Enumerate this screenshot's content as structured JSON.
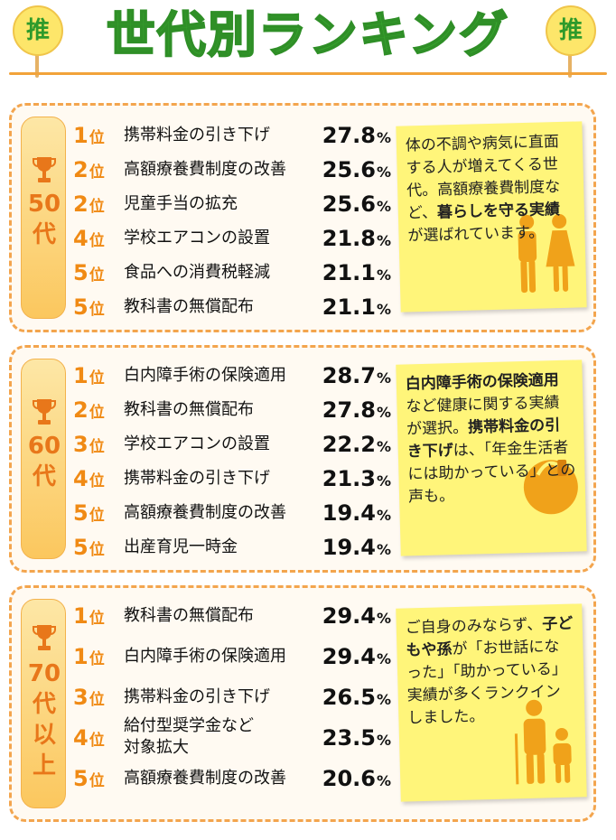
{
  "header": {
    "title": "世代別ランキング",
    "fan_left": "推",
    "fan_right": "推"
  },
  "colors": {
    "title_green": "#37a52e",
    "rank_orange": "#f08a14",
    "border_orange": "#f3a54e",
    "note_yellow": "#fff57a"
  },
  "sections": [
    {
      "age_lines": [
        "50",
        "代"
      ],
      "rankings": [
        {
          "rank": "1",
          "suffix": "位",
          "item": "携帯料金の引き下げ",
          "value": "27.8",
          "unit": "%"
        },
        {
          "rank": "2",
          "suffix": "位",
          "item": "高額療養費制度の改善",
          "value": "25.6",
          "unit": "%"
        },
        {
          "rank": "2",
          "suffix": "位",
          "item": "児童手当の拡充",
          "value": "25.6",
          "unit": "%"
        },
        {
          "rank": "4",
          "suffix": "位",
          "item": "学校エアコンの設置",
          "value": "21.8",
          "unit": "%"
        },
        {
          "rank": "5",
          "suffix": "位",
          "item": "食品への消費税軽減",
          "value": "21.1",
          "unit": "%"
        },
        {
          "rank": "5",
          "suffix": "位",
          "item": "教科書の無償配布",
          "value": "21.1",
          "unit": "%"
        }
      ],
      "note": {
        "parts": [
          {
            "text": "体の不調や病気に直面する人が増えてくる世代。高額療養費制度など、",
            "bold": false
          },
          {
            "text": "暮らしを守る実績",
            "bold": true
          },
          {
            "text": "が選ばれています。",
            "bold": false
          }
        ]
      },
      "icon": "couple-icon"
    },
    {
      "age_lines": [
        "60",
        "代"
      ],
      "rankings": [
        {
          "rank": "1",
          "suffix": "位",
          "item": "白内障手術の保険適用",
          "value": "28.7",
          "unit": "%"
        },
        {
          "rank": "2",
          "suffix": "位",
          "item": "教科書の無償配布",
          "value": "27.8",
          "unit": "%"
        },
        {
          "rank": "3",
          "suffix": "位",
          "item": "学校エアコンの設置",
          "value": "22.2",
          "unit": "%"
        },
        {
          "rank": "4",
          "suffix": "位",
          "item": "携帯料金の引き下げ",
          "value": "21.3",
          "unit": "%"
        },
        {
          "rank": "5",
          "suffix": "位",
          "item": "高額療養費制度の改善",
          "value": "19.4",
          "unit": "%"
        },
        {
          "rank": "5",
          "suffix": "位",
          "item": "出産育児一時金",
          "value": "19.4",
          "unit": "%"
        }
      ],
      "note": {
        "parts": [
          {
            "text": "白内障手術の保険適用",
            "bold": true
          },
          {
            "text": "など健康に関する実績が選択。",
            "bold": false
          },
          {
            "text": "携帯料金の引き下げ",
            "bold": true
          },
          {
            "text": "は、「年金生活者には助かっている」との声も。",
            "bold": false
          }
        ]
      },
      "icon": "person-phone-icon"
    },
    {
      "age_lines": [
        "70",
        "代",
        "以",
        "上"
      ],
      "rankings": [
        {
          "rank": "1",
          "suffix": "位",
          "item": "教科書の無償配布",
          "value": "29.4",
          "unit": "%"
        },
        {
          "rank": "1",
          "suffix": "位",
          "item": "白内障手術の保険適用",
          "value": "29.4",
          "unit": "%"
        },
        {
          "rank": "3",
          "suffix": "位",
          "item": "携帯料金の引き下げ",
          "value": "26.5",
          "unit": "%"
        },
        {
          "rank": "4",
          "suffix": "位",
          "item_lines": [
            "給付型奨学金など",
            "対象拡大"
          ],
          "value": "23.5",
          "unit": "%"
        },
        {
          "rank": "5",
          "suffix": "位",
          "item": "高額療養費制度の改善",
          "value": "20.6",
          "unit": "%"
        }
      ],
      "note": {
        "parts": [
          {
            "text": "ご自身のみならず、",
            "bold": false
          },
          {
            "text": "子どもや孫",
            "bold": true
          },
          {
            "text": "が「お世話になった」「助かっている」実績が多くランクインしました。",
            "bold": false
          }
        ]
      },
      "icon": "grandparent-child-icon"
    }
  ]
}
